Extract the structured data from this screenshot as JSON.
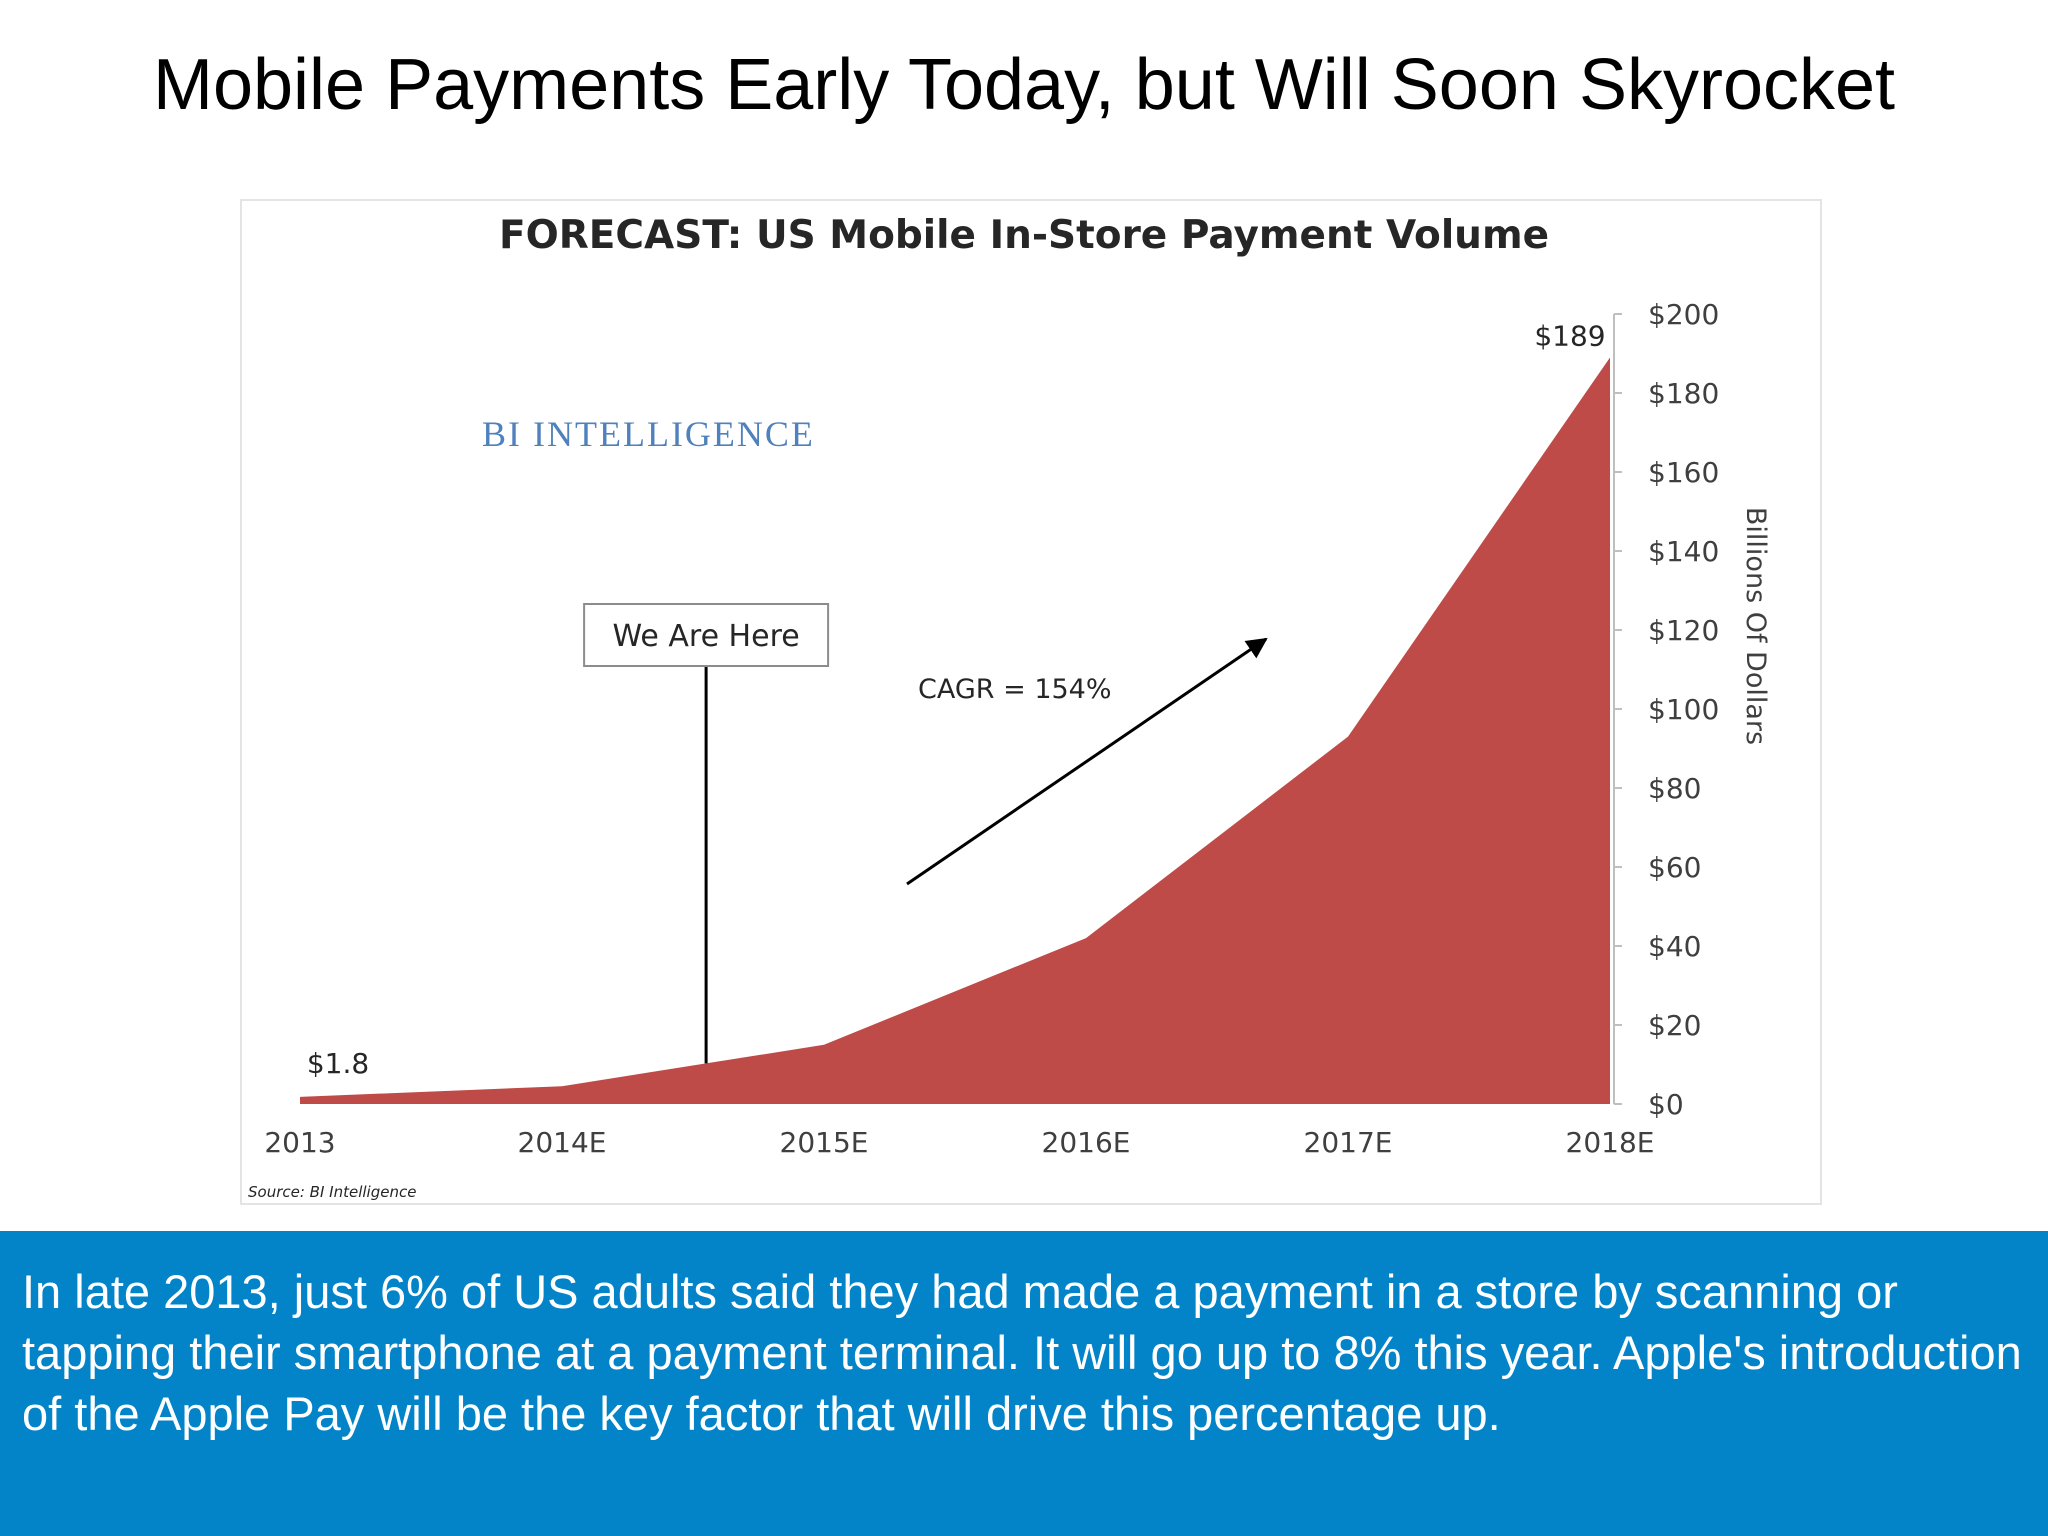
{
  "slide": {
    "title": "Mobile Payments Early Today, but Will Soon Skyrocket",
    "caption": "In late 2013, just 6% of US adults said they had made a payment in a store by scanning or tapping their smartphone at a payment terminal. It will go up to 8% this year. Apple's introduction of the Apple Pay will be the key factor that will drive this percentage up."
  },
  "colors": {
    "caption_background": "#0383c8",
    "area_fill": "#be4b48",
    "brand_text": "#4f81bd",
    "axis_text": "#3f3f3f"
  },
  "chart_data": {
    "type": "area",
    "title": "FORECAST: US Mobile In-Store Payment Volume",
    "categories": [
      "2013",
      "2014E",
      "2015E",
      "2016E",
      "2017E",
      "2018E"
    ],
    "x": [
      0,
      1,
      2,
      3,
      4,
      5
    ],
    "series": [
      {
        "values": [
          1.8,
          4.5,
          15,
          42,
          93,
          189
        ]
      }
    ],
    "ylabel": "Billions Of Dollars",
    "ylim": [
      0,
      200
    ],
    "y_ticks": [
      0,
      20,
      40,
      60,
      80,
      100,
      120,
      140,
      160,
      180,
      200
    ],
    "y_tick_labels": [
      "$0",
      "$20",
      "$40",
      "$60",
      "$80",
      "$100",
      "$120",
      "$140",
      "$160",
      "$180",
      "$200"
    ],
    "y_axis_side": "right",
    "grid": false,
    "legend": "none",
    "data_labels": [
      {
        "x": 0,
        "text": "$1.8"
      },
      {
        "x": 5,
        "text": "$189"
      }
    ],
    "annotations": {
      "brand": "BI INTELLIGENCE",
      "marker_label": "We Are Here",
      "marker_x": 1.55,
      "growth_label": "CAGR = 154%",
      "source": "Source: BI Intelligence"
    }
  }
}
